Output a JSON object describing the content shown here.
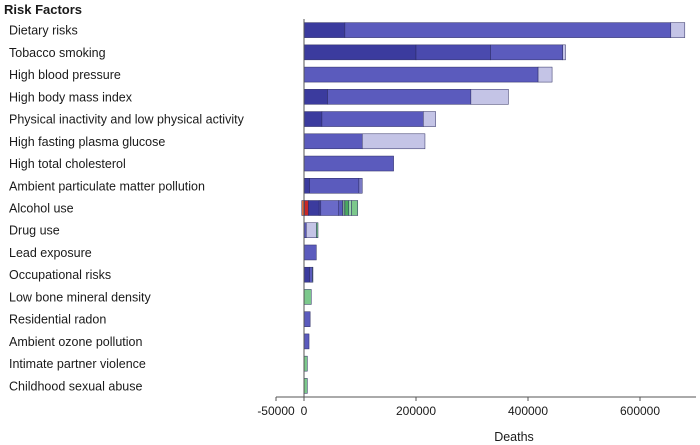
{
  "chart_data": {
    "type": "bar",
    "orientation": "horizontal",
    "stacked": true,
    "title": "Risk Factors",
    "xlabel": "Deaths",
    "ylabel": "",
    "xlim": [
      -50000,
      700000
    ],
    "xticks": [
      -50000,
      0,
      200000,
      400000,
      600000
    ],
    "xtick_labels": [
      "-50000",
      "0",
      "200000",
      "400000",
      "600000"
    ],
    "categories": [
      "Dietary risks",
      "Tobacco smoking",
      "High blood pressure",
      "High body mass index",
      "Physical inactivity and low physical activity",
      "High fasting plasma glucose",
      "High total cholesterol",
      "Ambient particulate matter pollution",
      "Alcohol use",
      "Drug use",
      "Lead exposure",
      "Occupational risks",
      "Low bone mineral density",
      "Residential radon",
      "Ambient ozone pollution",
      "Intimate partner violence",
      "Childhood sexual abuse"
    ],
    "bars": [
      [
        {
          "start": 0,
          "end": 73000,
          "color": "#3b3b9e"
        },
        {
          "start": 73000,
          "end": 655000,
          "color": "#5b5bbd"
        },
        {
          "start": 655000,
          "end": 680000,
          "color": "#c4c4e6"
        }
      ],
      [
        {
          "start": 0,
          "end": 200000,
          "color": "#3b3b9e"
        },
        {
          "start": 200000,
          "end": 333000,
          "color": "#4a4aae"
        },
        {
          "start": 333000,
          "end": 462000,
          "color": "#5b5bbd"
        },
        {
          "start": 462000,
          "end": 467000,
          "color": "#c4c4e6"
        }
      ],
      [
        {
          "start": 0,
          "end": 418000,
          "color": "#5b5bbd"
        },
        {
          "start": 418000,
          "end": 443000,
          "color": "#c4c4e6"
        }
      ],
      [
        {
          "start": 0,
          "end": 42000,
          "color": "#3b3b9e"
        },
        {
          "start": 42000,
          "end": 298000,
          "color": "#5b5bbd"
        },
        {
          "start": 298000,
          "end": 365000,
          "color": "#c4c4e6"
        }
      ],
      [
        {
          "start": 0,
          "end": 32000,
          "color": "#3b3b9e"
        },
        {
          "start": 32000,
          "end": 213000,
          "color": "#5b5bbd"
        },
        {
          "start": 213000,
          "end": 235000,
          "color": "#c4c4e6"
        }
      ],
      [
        {
          "start": 0,
          "end": 104000,
          "color": "#5b5bbd"
        },
        {
          "start": 104000,
          "end": 216000,
          "color": "#c4c4e6"
        }
      ],
      [
        {
          "start": 0,
          "end": 160000,
          "color": "#5b5bbd"
        }
      ],
      [
        {
          "start": 0,
          "end": 10000,
          "color": "#3b3b9e"
        },
        {
          "start": 10000,
          "end": 98000,
          "color": "#5b5bbd"
        },
        {
          "start": 98000,
          "end": 104000,
          "color": "#7a7ac4"
        }
      ],
      [
        {
          "start": -4000,
          "end": 1000,
          "color": "#e07040"
        },
        {
          "start": 1000,
          "end": 8000,
          "color": "#c82828"
        },
        {
          "start": 8000,
          "end": 27000,
          "color": "#3b3b9e"
        },
        {
          "start": 27000,
          "end": 30000,
          "color": "#4a4aae"
        },
        {
          "start": 30000,
          "end": 62000,
          "color": "#6a6ac8"
        },
        {
          "start": 62000,
          "end": 69000,
          "color": "#5b5bbd"
        },
        {
          "start": 69000,
          "end": 73000,
          "color": "#7aa88a"
        },
        {
          "start": 73000,
          "end": 80000,
          "color": "#4aa860"
        },
        {
          "start": 80000,
          "end": 85000,
          "color": "#9ad8a8"
        },
        {
          "start": 85000,
          "end": 96000,
          "color": "#7cc88c"
        }
      ],
      [
        {
          "start": 0,
          "end": 4000,
          "color": "#5b5bbd"
        },
        {
          "start": 4000,
          "end": 22000,
          "color": "#c4c4e6"
        },
        {
          "start": 22000,
          "end": 25000,
          "color": "#7cc88c"
        }
      ],
      [
        {
          "start": 0,
          "end": 22000,
          "color": "#5b5bbd"
        }
      ],
      [
        {
          "start": 0,
          "end": 10000,
          "color": "#3b3b9e"
        },
        {
          "start": 10000,
          "end": 15000,
          "color": "#5b5bbd"
        },
        {
          "start": 15000,
          "end": 16000,
          "color": "#7cc88c"
        }
      ],
      [
        {
          "start": 0,
          "end": 13000,
          "color": "#7cc88c"
        }
      ],
      [
        {
          "start": 0,
          "end": 11000,
          "color": "#5b5bbd"
        }
      ],
      [
        {
          "start": 0,
          "end": 9000,
          "color": "#5b5bbd"
        }
      ],
      [
        {
          "start": 0,
          "end": 6000,
          "color": "#7cc88c"
        }
      ],
      [
        {
          "start": 0,
          "end": 6000,
          "color": "#7cc88c"
        }
      ]
    ],
    "grid": false,
    "legend": "none"
  }
}
